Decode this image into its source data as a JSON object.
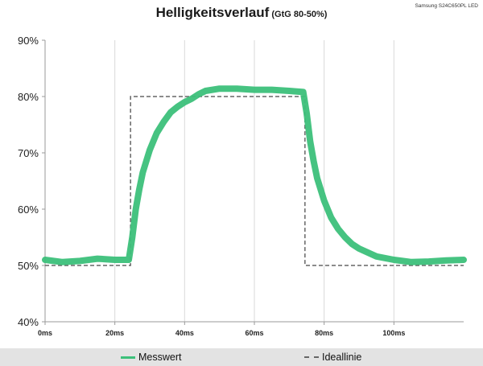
{
  "chart_data": {
    "type": "line",
    "title": "Helligkeitsverlauf",
    "subtitle": "(GtG 80-50%)",
    "corner_label": "Samsung S24C650PL LED",
    "xlabel": "",
    "ylabel": "",
    "xlim": [
      0,
      120
    ],
    "ylim": [
      40,
      90
    ],
    "x_ticks": [
      0,
      20,
      40,
      60,
      80,
      100
    ],
    "x_tick_labels": [
      "0ms",
      "20ms",
      "40ms",
      "60ms",
      "80ms",
      "100ms"
    ],
    "y_ticks": [
      40,
      50,
      60,
      70,
      80,
      90
    ],
    "y_tick_labels": [
      "40%",
      "50%",
      "60%",
      "70%",
      "80%",
      "90%"
    ],
    "grid": "vertical",
    "legend_position": "bottom",
    "series": [
      {
        "name": "Messwert",
        "color": "#3cc07a",
        "style": "solid",
        "x": [
          0,
          5,
          10,
          15,
          20,
          24,
          25,
          26,
          27,
          28,
          30,
          32,
          34,
          36,
          38,
          40,
          42,
          44,
          46,
          50,
          55,
          60,
          65,
          70,
          74,
          75,
          76,
          77,
          78,
          80,
          82,
          84,
          86,
          88,
          90,
          95,
          100,
          105,
          110,
          115,
          120
        ],
        "y": [
          51.0,
          50.6,
          50.8,
          51.2,
          51.0,
          51.0,
          55.0,
          60.0,
          63.5,
          66.5,
          70.5,
          73.5,
          75.5,
          77.2,
          78.2,
          79.0,
          79.6,
          80.4,
          81.0,
          81.4,
          81.4,
          81.2,
          81.2,
          81.0,
          80.8,
          77.0,
          72.0,
          68.5,
          65.5,
          61.5,
          58.5,
          56.5,
          55.0,
          53.8,
          53.0,
          51.6,
          51.0,
          50.6,
          50.7,
          50.9,
          51.0
        ]
      },
      {
        "name": "Ideallinie",
        "color": "#666666",
        "style": "dashed",
        "x": [
          0,
          24.5,
          24.5,
          74.5,
          74.5,
          120
        ],
        "y": [
          50,
          50,
          80,
          80,
          50,
          50
        ]
      }
    ]
  }
}
